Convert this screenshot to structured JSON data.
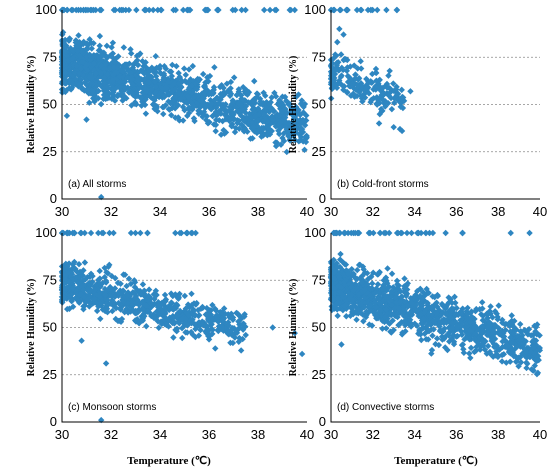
{
  "chart_data": [
    {
      "id": "a",
      "type": "scatter",
      "label": "(a) All storms",
      "xlabel": "",
      "ylabel": "Relative Humidity (%)",
      "xlim": [
        30,
        40
      ],
      "ylim": [
        0,
        100
      ],
      "xticks": [
        "30",
        "32",
        "34",
        "36",
        "38",
        "40"
      ],
      "yticks": [
        "0",
        "25",
        "50",
        "75",
        "100"
      ],
      "grid": true,
      "marker": "diamond",
      "color": "#2e86c1",
      "trend": {
        "x_start": 30,
        "x_end": 40,
        "y_start": 72,
        "y_end": 39,
        "spread": 13
      },
      "saturated_x_range": [
        30,
        39.5
      ],
      "extra_points": [
        [
          31.6,
          1
        ],
        [
          39.9,
          26
        ],
        [
          39.8,
          37
        ],
        [
          39.5,
          100
        ],
        [
          38.2,
          41
        ],
        [
          30.2,
          44
        ],
        [
          31.0,
          42
        ]
      ]
    },
    {
      "id": "b",
      "type": "scatter",
      "label": "(b) Cold-front storms",
      "xlabel": "",
      "ylabel": "Relative Humidity (%)",
      "xlim": [
        30,
        40
      ],
      "ylim": [
        0,
        100
      ],
      "xticks": [
        "30",
        "32",
        "34",
        "36",
        "38",
        "40"
      ],
      "yticks": [
        "0",
        "25",
        "50",
        "75",
        "100"
      ],
      "grid": true,
      "marker": "diamond",
      "color": "#2e86c1",
      "trend": {
        "x_start": 30,
        "x_end": 33.5,
        "y_start": 67,
        "y_end": 52,
        "spread": 10
      },
      "saturated_x_range": [
        30,
        33.2
      ],
      "extra_points": [
        [
          30.4,
          90
        ],
        [
          30.6,
          87
        ],
        [
          33.3,
          37
        ],
        [
          33.4,
          36
        ],
        [
          33.0,
          38
        ],
        [
          32.3,
          40
        ],
        [
          33.8,
          57
        ],
        [
          30.3,
          83
        ]
      ]
    },
    {
      "id": "c",
      "type": "scatter",
      "label": "(c) Monsoon storms",
      "xlabel": "",
      "ylabel": "Relative Humidity (%)",
      "xlim": [
        30,
        40
      ],
      "ylim": [
        0,
        100
      ],
      "xticks": [
        "30",
        "32",
        "34",
        "36",
        "38",
        "40"
      ],
      "yticks": [
        "0",
        "25",
        "50",
        "75",
        "100"
      ],
      "grid": true,
      "marker": "diamond",
      "color": "#2e86c1",
      "trend": {
        "x_start": 30,
        "x_end": 37.5,
        "y_start": 74,
        "y_end": 48,
        "spread": 11
      },
      "saturated_x_range": [
        30,
        35.5
      ],
      "extra_points": [
        [
          31.6,
          1
        ],
        [
          31.8,
          31
        ],
        [
          39.8,
          36
        ],
        [
          39.5,
          47
        ],
        [
          38.6,
          50
        ],
        [
          37.5,
          46
        ],
        [
          30.8,
          43
        ]
      ]
    },
    {
      "id": "d",
      "type": "scatter",
      "label": "(d) Convective storms",
      "xlabel": "Temperature (℃)",
      "ylabel": "Relative Humidity (%)",
      "xlim": [
        30,
        40
      ],
      "ylim": [
        0,
        100
      ],
      "xticks": [
        "30",
        "32",
        "34",
        "36",
        "38",
        "40"
      ],
      "yticks": [
        "0",
        "25",
        "50",
        "75",
        "100"
      ],
      "grid": true,
      "marker": "diamond",
      "color": "#2e86c1",
      "trend": {
        "x_start": 30,
        "x_end": 40,
        "y_start": 73,
        "y_end": 38,
        "spread": 13
      },
      "saturated_x_range": [
        30,
        36.5
      ],
      "extra_points": [
        [
          39.9,
          26
        ],
        [
          39.5,
          100
        ],
        [
          39.8,
          37
        ],
        [
          38.6,
          100
        ],
        [
          30.5,
          41
        ],
        [
          32.8,
          52
        ]
      ]
    }
  ],
  "figure": {
    "xlabel_left": "Temperature (℃)",
    "xlabel_right": "Temperature (℃)"
  }
}
